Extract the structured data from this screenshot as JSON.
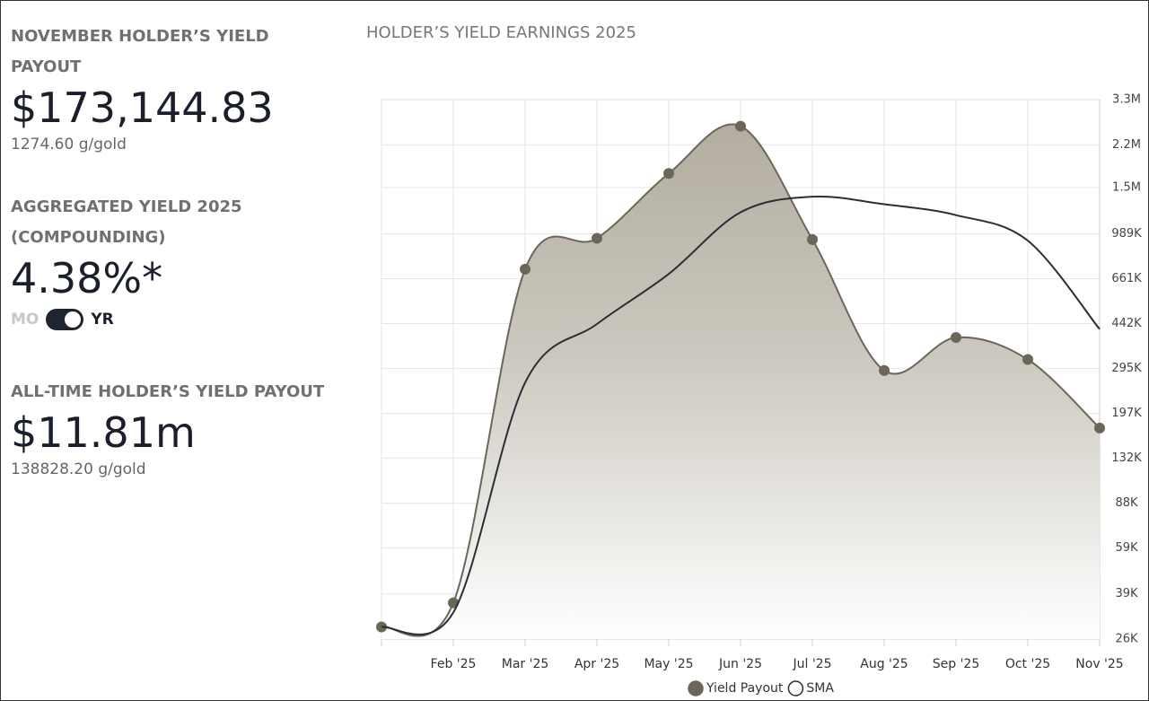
{
  "summary": {
    "monthly": {
      "title": "NOVEMBER HOLDER’S YIELD PAYOUT",
      "value": "$173,144.83",
      "sub": "1274.60 g/gold"
    },
    "aggregated": {
      "title": "AGGREGATED YIELD 2025 (COMPOUNDING)",
      "value": "4.38%*",
      "toggle_left": "MO",
      "toggle_right": "YR"
    },
    "alltime": {
      "title": "ALL-TIME HOLDER’S YIELD PAYOUT",
      "value": "$11.81m",
      "sub": "138828.20 g/gold"
    }
  },
  "chart_data": {
    "type": "area-line",
    "title": "HOLDER’S YIELD EARNINGS 2025",
    "categories": [
      null,
      "Feb '25",
      "Mar '25",
      "Apr '25",
      "May '25",
      "Jun '25",
      "Jul '25",
      "Aug '25",
      "Sep '25",
      "Oct '25",
      "Nov '25"
    ],
    "series": [
      {
        "name": "Yield Payout",
        "color": "#6b6758",
        "values": [
          29000,
          36000,
          720000,
          950000,
          1700000,
          2600000,
          940000,
          290000,
          390000,
          320000,
          173000
        ]
      },
      {
        "name": "SMA",
        "color": "#2a2e35",
        "values": [
          29000,
          33000,
          260000,
          440000,
          690000,
          1200000,
          1380000,
          1290000,
          1170000,
          930000,
          420000
        ]
      }
    ],
    "log_scale": true,
    "grid": true,
    "ylim": [
      26000,
      3300000
    ],
    "yticks": [
      {
        "value": 26000,
        "label": "26K"
      },
      {
        "value": 39000,
        "label": "39K"
      },
      {
        "value": 59000,
        "label": "59K"
      },
      {
        "value": 88000,
        "label": "88K"
      },
      {
        "value": 132000,
        "label": "132K"
      },
      {
        "value": 197000,
        "label": "197K"
      },
      {
        "value": 295000,
        "label": "295K"
      },
      {
        "value": 442000,
        "label": "442K"
      },
      {
        "value": 661000,
        "label": "661K"
      },
      {
        "value": 989000,
        "label": "989K"
      },
      {
        "value": 1500000,
        "label": "1.5M"
      },
      {
        "value": 2200000,
        "label": "2.2M"
      },
      {
        "value": 3300000,
        "label": "3.3M"
      }
    ]
  }
}
